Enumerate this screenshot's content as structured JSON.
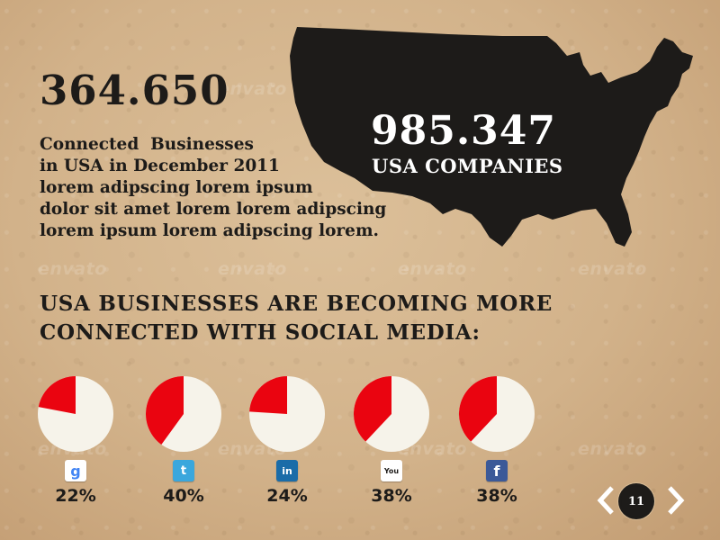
{
  "watermark": "envato",
  "stat": {
    "number": "364.650",
    "lines": [
      "Connected  Businesses",
      "in USA in December 2011",
      "lorem adipscing lorem ipsum",
      "dolor sit amet lorem lorem adipscing",
      "lorem ipsum lorem adipscing lorem."
    ]
  },
  "map": {
    "number": "985.347",
    "label": "USA COMPANIES"
  },
  "headline": {
    "line1": "USA BUSINESSES ARE BECOMING MORE",
    "line2": "CONNECTED WITH SOCIAL MEDIA:"
  },
  "colors": {
    "accent": "#ea0410",
    "ink": "#1d1b19",
    "pie_base": "#f6f3ea"
  },
  "chart_data": {
    "type": "pie",
    "categories": [
      "Google",
      "Twitter",
      "LinkedIn",
      "YouTube",
      "Facebook"
    ],
    "values": [
      22,
      40,
      24,
      38,
      38
    ],
    "labels": [
      "22%",
      "40%",
      "24%",
      "38%",
      "38%"
    ],
    "icons": [
      "google-icon",
      "twitter-icon",
      "linkedin-icon",
      "youtube-icon",
      "facebook-icon"
    ]
  },
  "icons": {
    "google": "g",
    "twitter": "t",
    "linkedin": "in",
    "youtube": "You",
    "facebook": "f"
  },
  "pager": {
    "page": "11"
  }
}
